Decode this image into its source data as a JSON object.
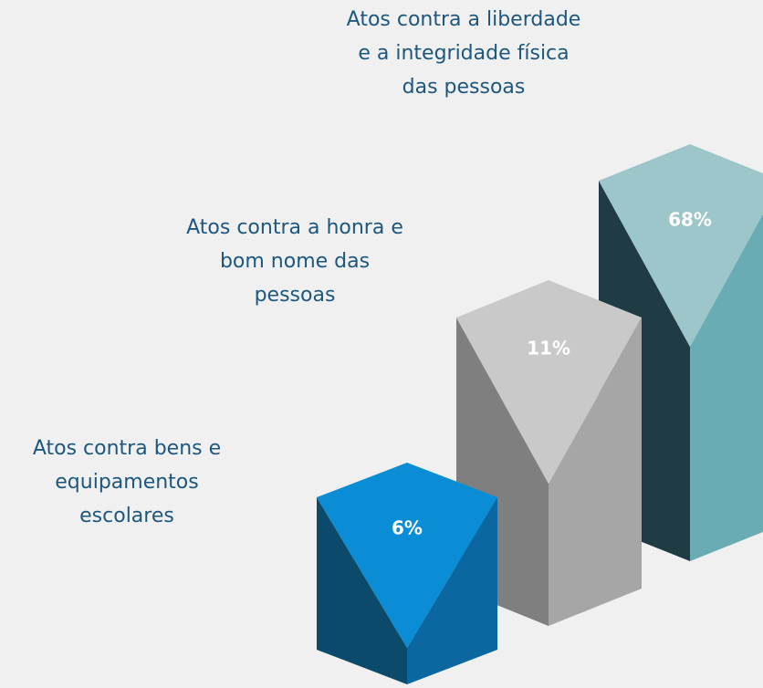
{
  "items": [
    {
      "label": [
        "Atos contra bens e",
        "equipamentos",
        "escolares"
      ],
      "value": "6%"
    },
    {
      "label": [
        "Atos contra a honra e",
        "bom nome das",
        "pessoas"
      ],
      "value": "11%"
    },
    {
      "label": [
        "Atos contra a liberdade",
        "e a integridade física",
        "das pessoas"
      ],
      "value": "68%"
    }
  ]
}
